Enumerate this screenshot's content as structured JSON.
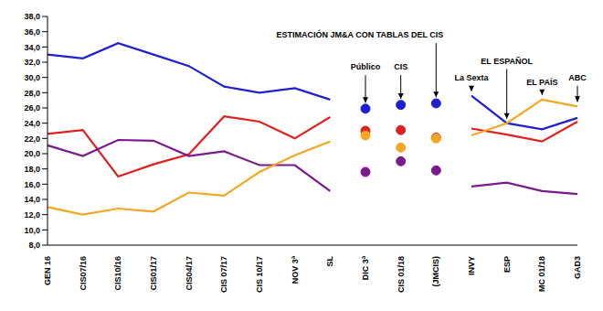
{
  "chart_data": {
    "type": "line",
    "categories": [
      "GEN 16",
      "CIS07/16",
      "CIS10/16",
      "CIS01/17",
      "CIS04/17",
      "CIS 07/17",
      "CIS 10/17",
      "NOV 3ª",
      "SL",
      "DIC 3ª",
      "CIS 01/18",
      "(JMCIS)",
      "INVY",
      "ESP",
      "MC 01/18",
      "GAD3"
    ],
    "series": [
      {
        "type": "line",
        "color": "#1f1fd1",
        "values": [
          33.0,
          32.5,
          34.5,
          33.0,
          31.5,
          28.8,
          28.0,
          28.6,
          27.1,
          null,
          null,
          null,
          27.6,
          24.0,
          23.2,
          24.7
        ]
      },
      {
        "type": "line",
        "color": "#e0201f",
        "values": [
          22.6,
          23.1,
          17.0,
          18.6,
          19.9,
          24.9,
          24.2,
          22.0,
          24.8,
          null,
          null,
          null,
          23.3,
          22.5,
          21.6,
          24.2
        ]
      },
      {
        "type": "line",
        "color": "#7a1a8c",
        "values": [
          21.1,
          19.7,
          21.8,
          21.7,
          19.7,
          20.3,
          18.5,
          18.5,
          15.1,
          null,
          null,
          null,
          15.7,
          16.2,
          15.1,
          14.7
        ]
      },
      {
        "type": "line",
        "color": "#f5a623",
        "values": [
          13.0,
          12.0,
          12.8,
          12.4,
          14.9,
          14.5,
          17.6,
          19.8,
          21.6,
          null,
          null,
          null,
          22.4,
          24.0,
          27.1,
          26.2
        ]
      },
      {
        "type": "scatter",
        "marker": "circle",
        "color": "#1f1fd1",
        "values": [
          null,
          null,
          null,
          null,
          null,
          null,
          null,
          null,
          null,
          25.9,
          26.4,
          26.6,
          null,
          null,
          null,
          null
        ]
      },
      {
        "type": "scatter",
        "marker": "circle",
        "color": "#e0201f",
        "values": [
          null,
          null,
          null,
          null,
          null,
          null,
          null,
          null,
          null,
          23.0,
          23.1,
          22.1,
          null,
          null,
          null,
          null
        ]
      },
      {
        "type": "scatter",
        "marker": "circle",
        "color": "#7a1a8c",
        "values": [
          null,
          null,
          null,
          null,
          null,
          null,
          null,
          null,
          null,
          17.6,
          19.0,
          17.8,
          null,
          null,
          null,
          null
        ]
      },
      {
        "type": "scatter",
        "marker": "circle",
        "color": "#f5a623",
        "values": [
          null,
          null,
          null,
          null,
          null,
          null,
          null,
          null,
          null,
          22.4,
          20.8,
          22.0,
          null,
          null,
          null,
          null
        ]
      }
    ],
    "ylim": [
      8,
      38
    ],
    "yticks": [
      {
        "value": 8,
        "label": "8,0"
      },
      {
        "value": 10,
        "label": "10,0"
      },
      {
        "value": 12,
        "label": "12,0"
      },
      {
        "value": 14,
        "label": "14,0"
      },
      {
        "value": 16,
        "label": "16,0"
      },
      {
        "value": 18,
        "label": "18,0"
      },
      {
        "value": 20,
        "label": "20,0"
      },
      {
        "value": 22,
        "label": "22,0"
      },
      {
        "value": 24,
        "label": "24,0"
      },
      {
        "value": 26,
        "label": "26,0"
      },
      {
        "value": 28,
        "label": "28,0"
      },
      {
        "value": 30,
        "label": "30,0"
      },
      {
        "value": 32,
        "label": "32,0"
      },
      {
        "value": 34,
        "label": "34,0"
      },
      {
        "value": 36,
        "label": "36,0"
      },
      {
        "value": 38,
        "label": "38,0"
      }
    ],
    "grid": false,
    "annotations": [
      {
        "text": "ESTIMACIÓN JM&A CON TABLAS DEL CIS",
        "x": "(JMCIS)",
        "y": 35.2,
        "arrow_y": 27.4
      },
      {
        "text": "Público",
        "x": "DIC 3ª",
        "y": 31.0,
        "arrow_y": 26.7
      },
      {
        "text": "CIS",
        "x": "CIS 01/18",
        "y": 31.0,
        "arrow_y": 27.2
      },
      {
        "text": "La Sexta",
        "x": "INVY",
        "y": 29.6,
        "arrow_y": 28.2
      },
      {
        "text": "EL ESPAÑOL",
        "x": "ESP",
        "y": 31.8,
        "arrow_y": 24.6
      },
      {
        "text": "EL PAÍS",
        "x": "MC 01/18",
        "y": 29.0,
        "arrow_y": 27.7
      },
      {
        "text": "ABC",
        "x": "GAD3",
        "y": 29.6,
        "arrow_y": 26.8
      }
    ]
  }
}
